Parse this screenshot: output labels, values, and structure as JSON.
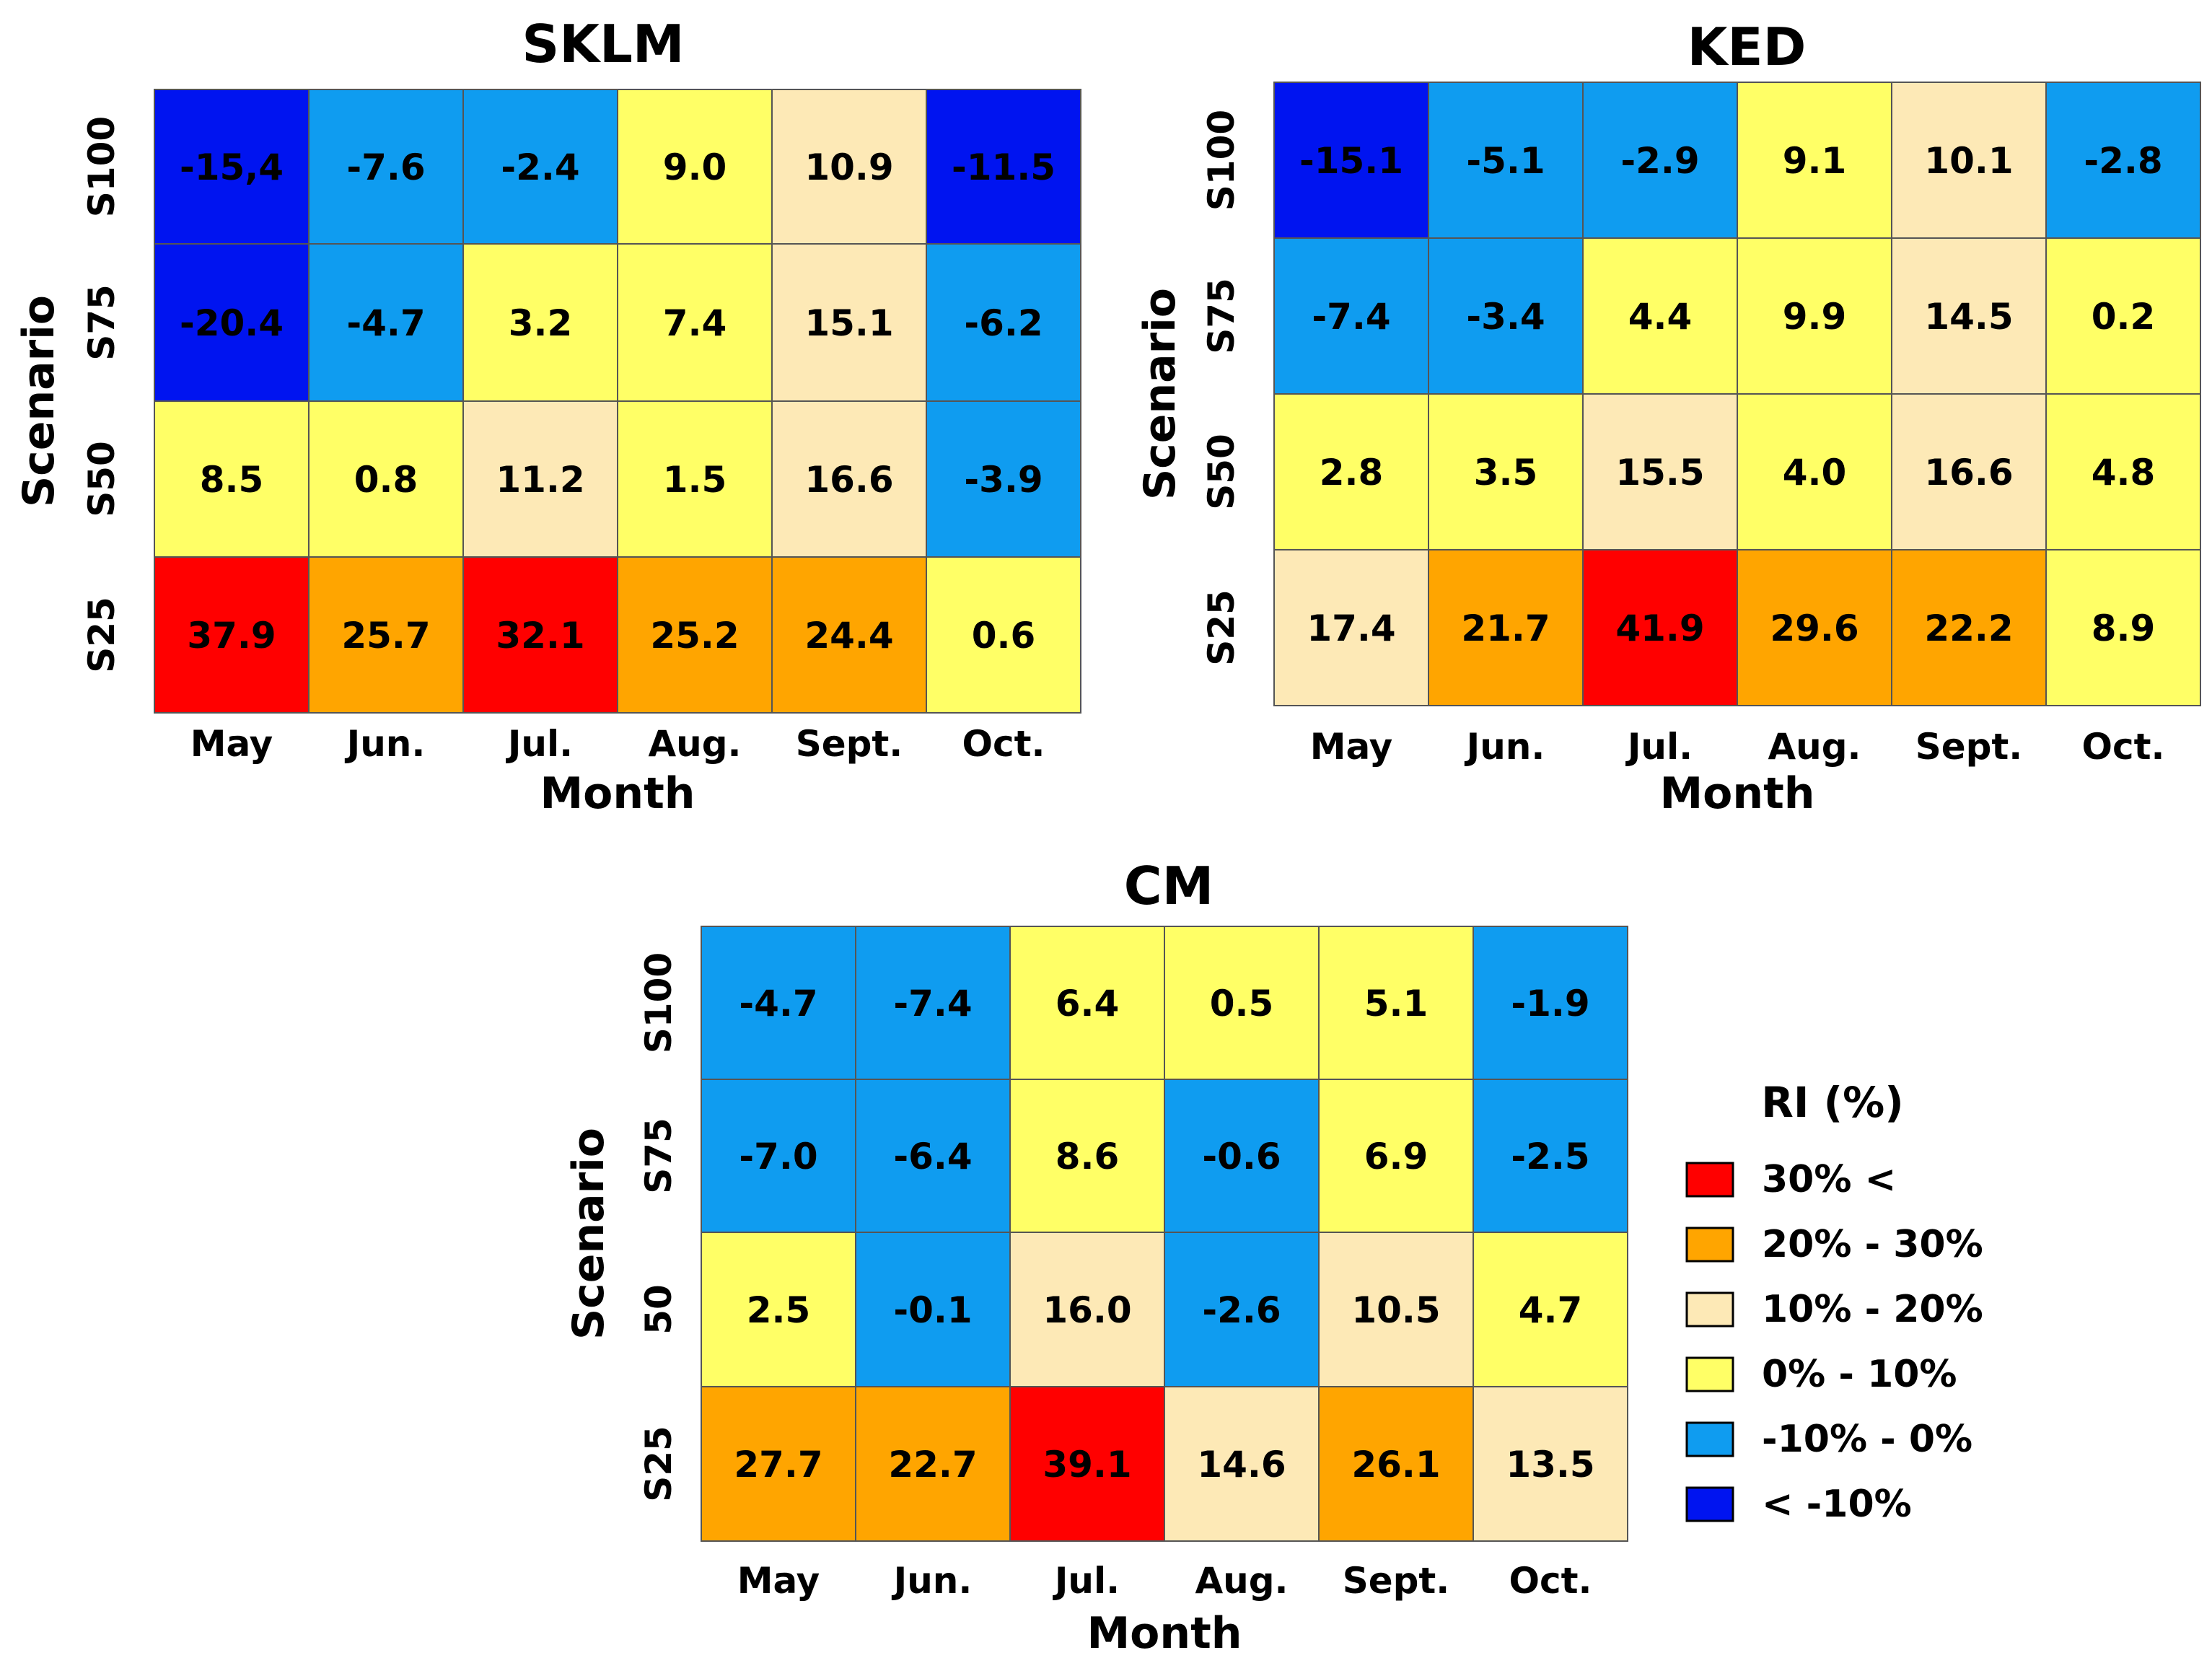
{
  "colors": {
    "red": "#ff0000",
    "orange": "#ffa500",
    "beige": "#fde9b6",
    "yellow": "#ffff66",
    "lightblue": "#0f9cf0",
    "blue": "#0014f0",
    "grid": "#555555"
  },
  "chart_data": [
    {
      "type": "heatmap",
      "title": "SKLM",
      "xlabel": "Month",
      "ylabel": "Scenario",
      "x_categories": [
        "May",
        "Jun.",
        "Jul.",
        "Aug.",
        "Sept.",
        "Oct."
      ],
      "y_categories": [
        "S100",
        "S75",
        "S50",
        "S25"
      ],
      "values": [
        [
          -15.4,
          -7.6,
          -2.4,
          9.0,
          10.9,
          -11.5
        ],
        [
          -20.4,
          -4.7,
          3.2,
          7.4,
          15.1,
          -6.2
        ],
        [
          8.5,
          0.8,
          11.2,
          1.5,
          16.6,
          -3.9
        ],
        [
          37.9,
          25.7,
          32.1,
          25.2,
          24.4,
          0.6
        ]
      ],
      "labels": [
        [
          "-15,4",
          "-7.6",
          "-2.4",
          "9.0",
          "10.9",
          "-11.5"
        ],
        [
          "-20.4",
          "-4.7",
          "3.2",
          "7.4",
          "15.1",
          "-6.2"
        ],
        [
          "8.5",
          "0.8",
          "11.2",
          "1.5",
          "16.6",
          "-3.9"
        ],
        [
          "37.9",
          "25.7",
          "32.1",
          "25.2",
          "24.4",
          "0.6"
        ]
      ]
    },
    {
      "type": "heatmap",
      "title": "KED",
      "xlabel": "Month",
      "ylabel": "Scenario",
      "x_categories": [
        "May",
        "Jun.",
        "Jul.",
        "Aug.",
        "Sept.",
        "Oct."
      ],
      "y_categories": [
        "S100",
        "S75",
        "S50",
        "S25"
      ],
      "values": [
        [
          -15.1,
          -5.1,
          -2.9,
          9.1,
          10.1,
          -2.8
        ],
        [
          -7.4,
          -3.4,
          4.4,
          9.9,
          14.5,
          0.2
        ],
        [
          2.8,
          3.5,
          15.5,
          4.0,
          16.6,
          4.8
        ],
        [
          17.4,
          21.7,
          41.9,
          29.6,
          22.2,
          8.9
        ]
      ],
      "labels": [
        [
          "-15.1",
          "-5.1",
          "-2.9",
          "9.1",
          "10.1",
          "-2.8"
        ],
        [
          "-7.4",
          "-3.4",
          "4.4",
          "9.9",
          "14.5",
          "0.2"
        ],
        [
          "2.8",
          "3.5",
          "15.5",
          "4.0",
          "16.6",
          "4.8"
        ],
        [
          "17.4",
          "21.7",
          "41.9",
          "29.6",
          "22.2",
          "8.9"
        ]
      ]
    },
    {
      "type": "heatmap",
      "title": "CM",
      "xlabel": "Month",
      "ylabel": "Scenario",
      "x_categories": [
        "May",
        "Jun.",
        "Jul.",
        "Aug.",
        "Sept.",
        "Oct."
      ],
      "y_categories": [
        "S100",
        "S75",
        "50",
        "S25"
      ],
      "values": [
        [
          -4.7,
          -7.4,
          6.4,
          0.5,
          5.1,
          -1.9
        ],
        [
          -7.0,
          -6.4,
          8.6,
          -0.6,
          6.9,
          -2.5
        ],
        [
          2.5,
          -0.1,
          16.0,
          -2.6,
          10.5,
          4.7
        ],
        [
          27.7,
          22.7,
          39.1,
          14.6,
          26.1,
          13.5
        ]
      ],
      "labels": [
        [
          "-4.7",
          "-7.4",
          "6.4",
          "0.5",
          "5.1",
          "-1.9"
        ],
        [
          "-7.0",
          "-6.4",
          "8.6",
          "-0.6",
          "6.9",
          "-2.5"
        ],
        [
          "2.5",
          "-0.1",
          "16.0",
          "-2.6",
          "10.5",
          "4.7"
        ],
        [
          "27.7",
          "22.7",
          "39.1",
          "14.6",
          "26.1",
          "13.5"
        ]
      ]
    }
  ],
  "legend": {
    "title": "RI (%)",
    "items": [
      {
        "label": "30% <",
        "color": "#ff0000",
        "min": 30,
        "max": null
      },
      {
        "label": "20% - 30%",
        "color": "#ffa500",
        "min": 20,
        "max": 30
      },
      {
        "label": "10% - 20%",
        "color": "#fde9b6",
        "min": 10,
        "max": 20
      },
      {
        "label": "0% - 10%",
        "color": "#ffff66",
        "min": 0,
        "max": 10
      },
      {
        "label": "-10% - 0%",
        "color": "#0f9cf0",
        "min": -10,
        "max": 0
      },
      {
        "label": "< -10%",
        "color": "#0014f0",
        "min": null,
        "max": -10
      }
    ]
  }
}
